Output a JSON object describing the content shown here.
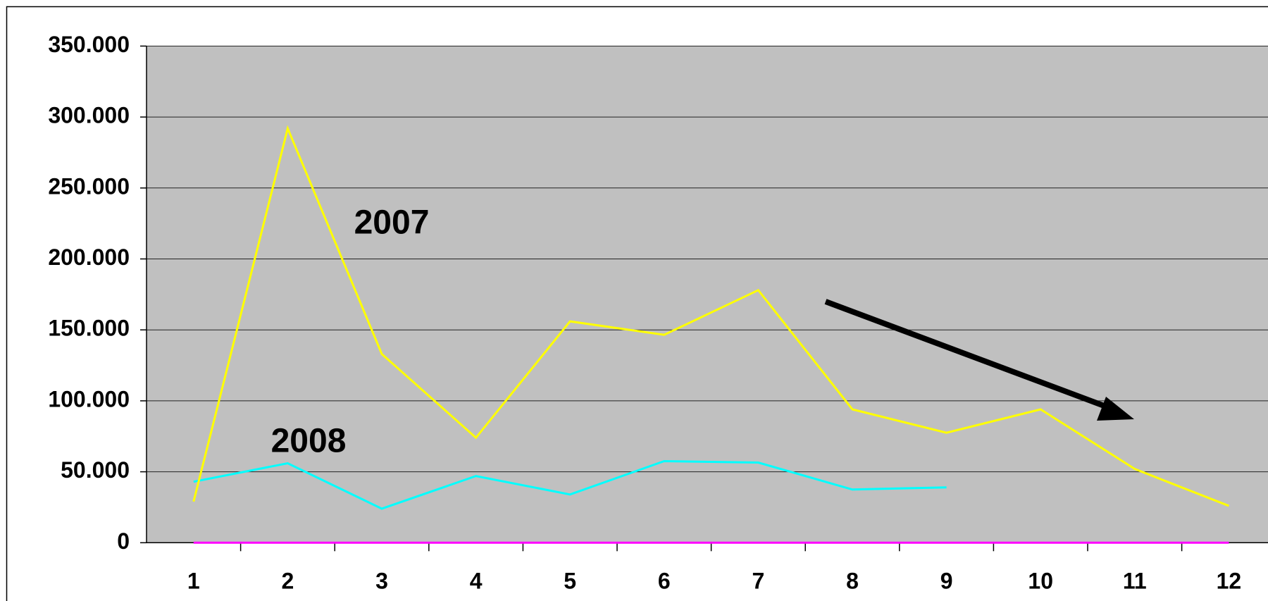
{
  "chart_data": {
    "type": "line",
    "categories": [
      "1",
      "2",
      "3",
      "4",
      "5",
      "6",
      "7",
      "8",
      "9",
      "10",
      "11",
      "12"
    ],
    "series": [
      {
        "name": "2007",
        "color": "#ffff00",
        "values": [
          29000,
          292000,
          133000,
          74000,
          156000,
          146500,
          178000,
          94000,
          77500,
          94000,
          52000,
          26000
        ]
      },
      {
        "name": "2008",
        "color": "#00ffff",
        "values": [
          43000,
          56000,
          24000,
          47000,
          34000,
          57500,
          56500,
          37500,
          39000,
          null,
          null,
          null
        ]
      },
      {
        "color": "#ff00ff",
        "values": [
          0,
          0,
          0,
          0,
          0,
          0,
          0,
          0,
          0,
          0,
          0,
          0
        ]
      }
    ],
    "annotations": [
      "2007",
      "2008"
    ],
    "ylim": [
      0,
      350000
    ],
    "yticks": [
      0,
      {
        "value": 50000,
        "label": "50.000"
      },
      {
        "value": 100000,
        "label": "100.000"
      },
      {
        "value": 150000,
        "label": "150.000"
      },
      {
        "value": 200000,
        "label": "200.000"
      },
      {
        "value": 250000,
        "label": "250.000"
      },
      {
        "value": 300000,
        "label": "300.000"
      },
      {
        "value": 350000,
        "label": "350.000"
      }
    ],
    "grid": true
  }
}
